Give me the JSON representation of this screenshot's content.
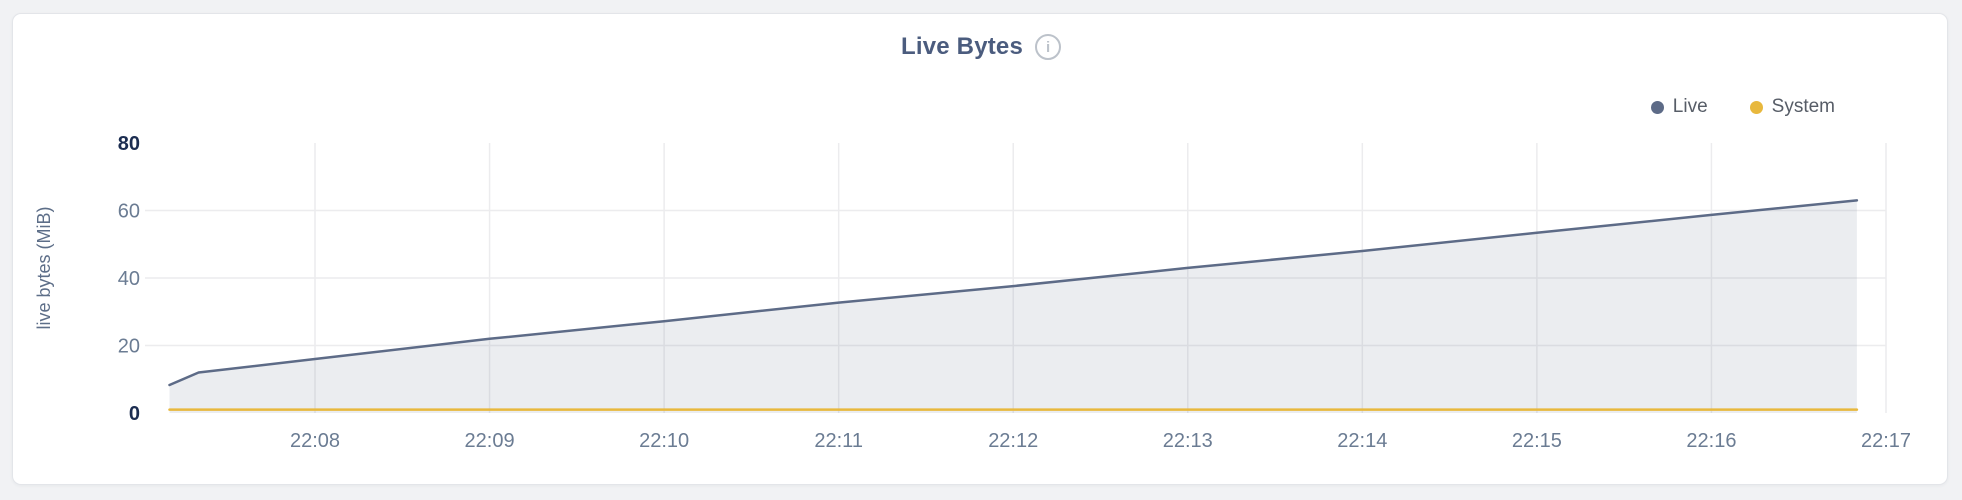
{
  "page": {
    "background": "#f1f2f4"
  },
  "card": {
    "background": "#ffffff",
    "border_color": "#e3e5e9"
  },
  "header": {
    "title": "Live Bytes",
    "info_icon_glyph": "i"
  },
  "legend": {
    "position": "top-right",
    "items": [
      {
        "label": "Live",
        "color": "#5d6b87"
      },
      {
        "label": "System",
        "color": "#e8b83d"
      }
    ]
  },
  "chart_data": {
    "type": "area",
    "title": "Live Bytes",
    "xlabel": "",
    "ylabel": "live bytes (MiB)",
    "ylim": [
      0,
      80
    ],
    "y_ticks": [
      0,
      20,
      40,
      60,
      80
    ],
    "y_ticks_bold": [
      0,
      80
    ],
    "x_ticks": [
      "22:08",
      "22:09",
      "22:10",
      "22:11",
      "22:12",
      "22:13",
      "22:14",
      "22:15",
      "22:16",
      "22:17"
    ],
    "grid": true,
    "legend_position": "top-right",
    "series": [
      {
        "name": "Live",
        "color": "#5d6b87",
        "fill": true,
        "fill_color": "rgba(93,107,135,0.12)",
        "points": [
          [
            "22:07:10",
            8.3
          ],
          [
            "22:07:20",
            12
          ],
          [
            "22:08:00",
            16
          ],
          [
            "22:09:00",
            22
          ],
          [
            "22:10:00",
            27.2
          ],
          [
            "22:11:00",
            32.7
          ],
          [
            "22:12:00",
            37.6
          ],
          [
            "22:13:00",
            43
          ],
          [
            "22:14:00",
            48
          ],
          [
            "22:15:00",
            53.4
          ],
          [
            "22:16:00",
            58.7
          ],
          [
            "22:16:50",
            63
          ]
        ]
      },
      {
        "name": "System",
        "color": "#e8b83d",
        "fill": false,
        "points": [
          [
            "22:07:10",
            1
          ],
          [
            "22:16:50",
            1
          ]
        ]
      }
    ],
    "colors": {
      "gridline": "#ececee",
      "tick_label": "#6b7c93",
      "tick_label_bold": "#1c2d51",
      "axis_title": "#5d6e88"
    }
  }
}
